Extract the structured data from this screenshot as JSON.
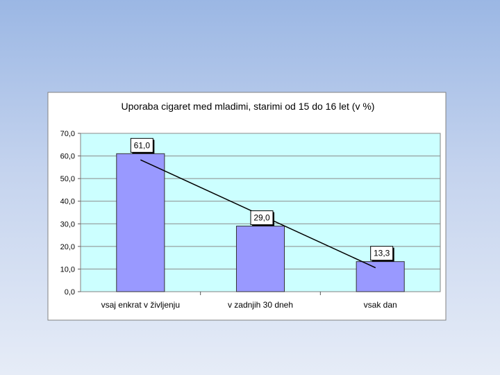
{
  "chart_data": {
    "type": "bar",
    "title": "Uporaba cigaret med mladimi, starimi od 15 do 16 let (v %)",
    "categories": [
      "vsaj enkrat v življenju",
      "v zadnjih 30 dneh",
      "vsak dan"
    ],
    "values": [
      61.0,
      29.0,
      13.3
    ],
    "value_labels": [
      "61,0",
      "29,0",
      "13,3"
    ],
    "ylim": [
      0,
      70
    ],
    "yticks": [
      0,
      10,
      20,
      30,
      40,
      50,
      60,
      70
    ],
    "ytick_labels": [
      "0,0",
      "10,0",
      "20,0",
      "30,0",
      "40,0",
      "50,0",
      "60,0",
      "70,0"
    ],
    "grid": true,
    "trendline": true,
    "xlabel": "",
    "ylabel": "",
    "colors": {
      "bar": "#9999ff",
      "plot_background": "#ccffff",
      "chart_background": "#ffffff"
    }
  }
}
